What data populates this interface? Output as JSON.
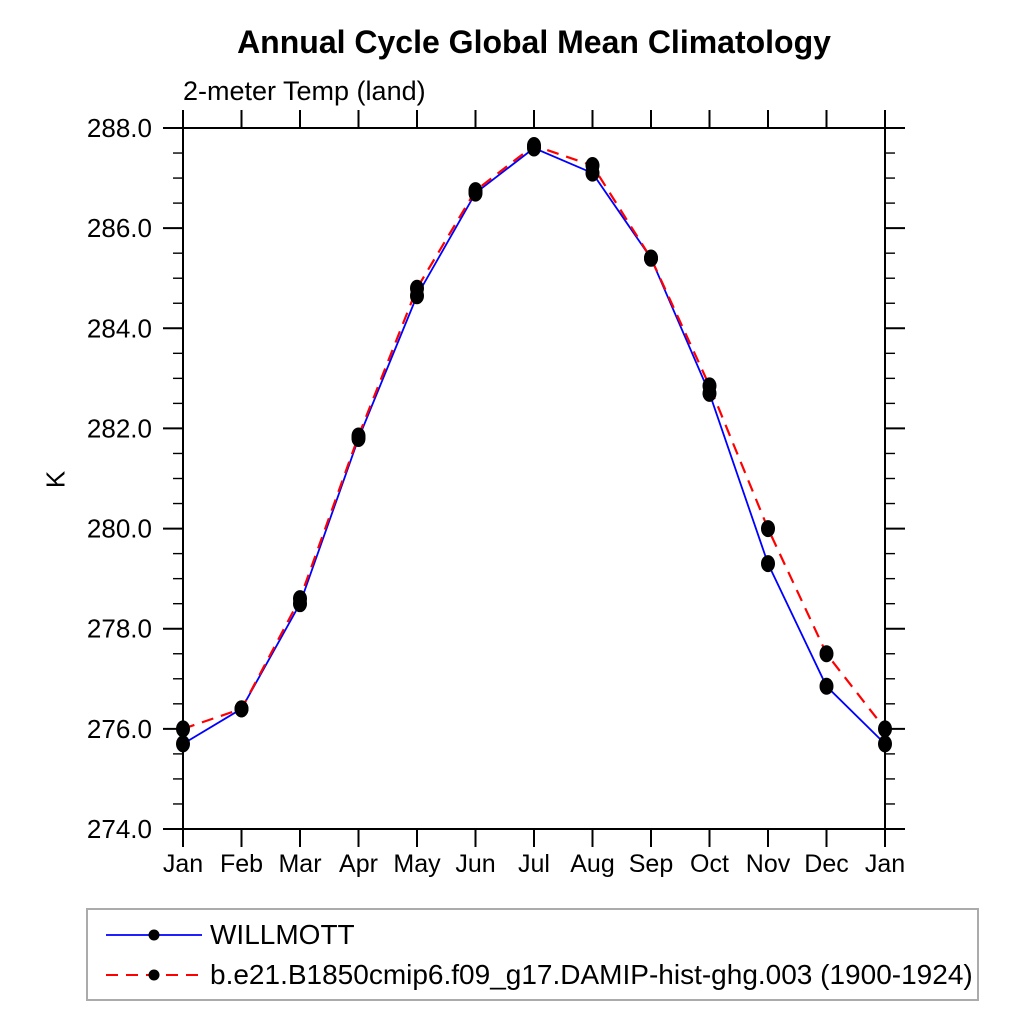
{
  "header": {
    "title": "Annual Cycle Global Mean Climatology",
    "subtitle": "2-meter Temp (land)"
  },
  "y_axis": {
    "label": "K",
    "tick_labels": [
      "274.0",
      "276.0",
      "278.0",
      "280.0",
      "282.0",
      "284.0",
      "286.0",
      "288.0"
    ]
  },
  "colors": {
    "willmott_line": "#0000ff",
    "damip_line": "#ff0000",
    "marker": "#000000",
    "axis": "#000000",
    "legend_border": "#ababab"
  },
  "chart_data": {
    "type": "line",
    "title": "Annual Cycle Global Mean Climatology",
    "subtitle": "2-meter Temp (land)",
    "ylabel": "K",
    "xlabel": "",
    "ylim": [
      274.0,
      288.0
    ],
    "ytick_major_step": 2.0,
    "ytick_minor_step": 0.5,
    "grid": false,
    "legend_position": "bottom-left-box",
    "categories": [
      "Jan",
      "Feb",
      "Mar",
      "Apr",
      "May",
      "Jun",
      "Jul",
      "Aug",
      "Sep",
      "Oct",
      "Nov",
      "Dec",
      "Jan"
    ],
    "series": [
      {
        "id": "willmott",
        "name": "WILLMOTT",
        "color": "#0000ff",
        "line_style": "solid",
        "marker": "filled-circle",
        "marker_color": "#000000",
        "values": [
          275.7,
          276.4,
          278.5,
          281.8,
          284.65,
          286.7,
          287.6,
          287.1,
          285.4,
          282.7,
          279.3,
          276.85,
          275.7
        ]
      },
      {
        "id": "damip",
        "name": "b.e21.B1850cmip6.f09_g17.DAMIP-hist-ghg.003 (1900-1924)",
        "color": "#ff0000",
        "line_style": "dashed",
        "marker": "filled-circle",
        "marker_color": "#000000",
        "values": [
          276.0,
          276.4,
          278.6,
          281.85,
          284.8,
          286.75,
          287.65,
          287.25,
          285.4,
          282.85,
          280.0,
          277.5,
          276.0
        ]
      }
    ]
  },
  "legend": {
    "entries": [
      {
        "label": "WILLMOTT"
      },
      {
        "label": "b.e21.B1850cmip6.f09_g17.DAMIP-hist-ghg.003 (1900-1924)"
      }
    ]
  }
}
